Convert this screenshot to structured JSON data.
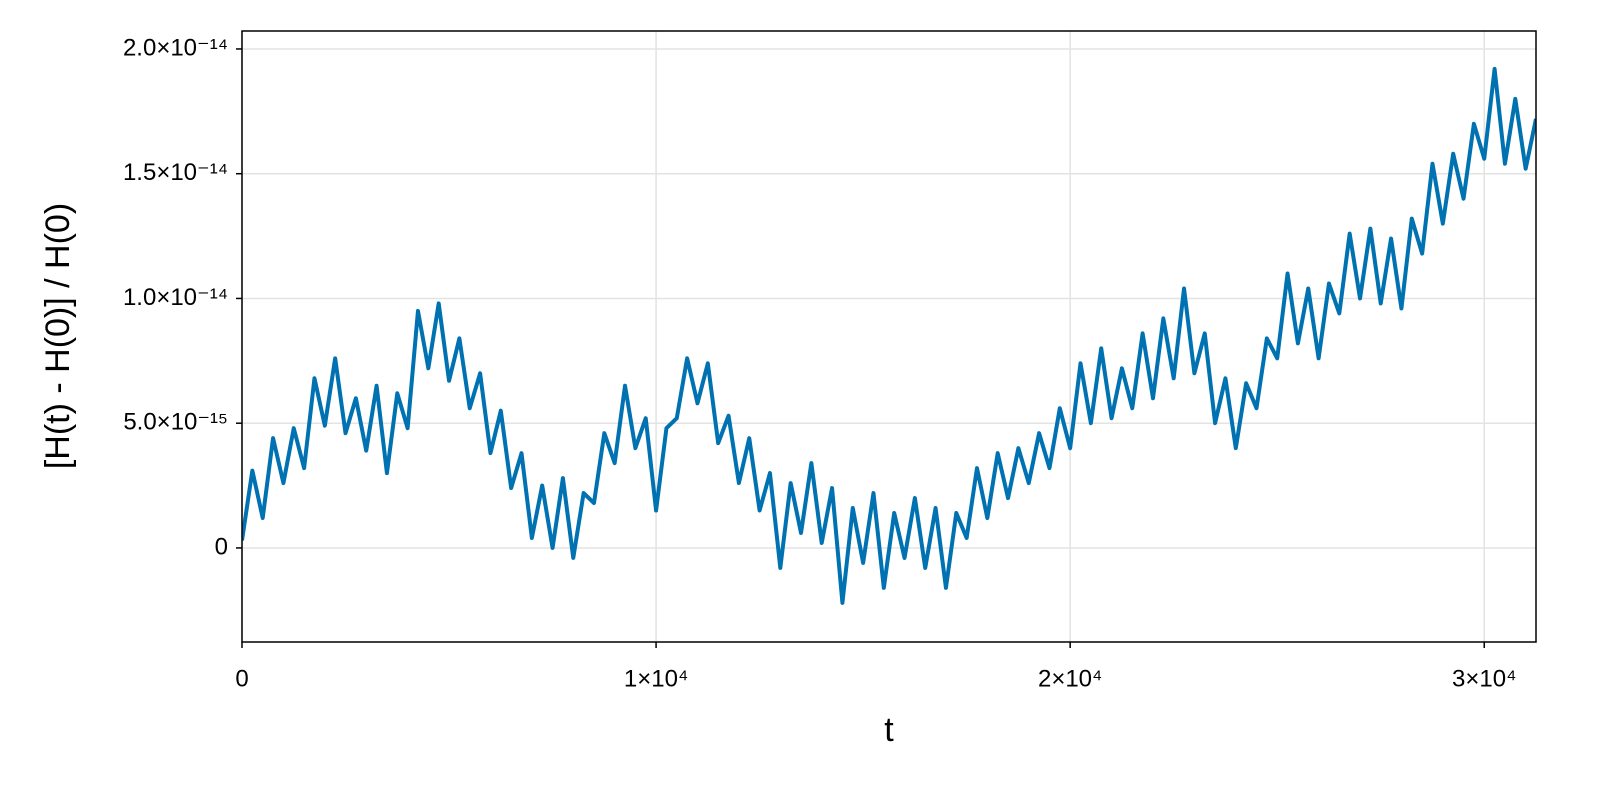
{
  "chart_data": {
    "type": "line",
    "x_label": "t",
    "y_label": "[H(t) - H(0)] / H(0)",
    "color": "#0072b2",
    "grid": true,
    "xlim": [
      0,
      31250
    ],
    "ylim": [
      -3.77e-15,
      2.072e-14
    ],
    "xticks": [
      0,
      {
        "value": 10000,
        "label": "1×10⁴"
      },
      {
        "value": 20000,
        "label": "2×10⁴"
      },
      {
        "value": 30000,
        "label": "3×10⁴"
      }
    ],
    "yticks": [
      0,
      {
        "value": 5e-15,
        "label": "5.0×10⁻¹⁵"
      },
      {
        "value": 1e-14,
        "label": "1.0×10⁻¹⁴"
      },
      {
        "value": 1.5e-14,
        "label": "1.5×10⁻¹⁴"
      },
      {
        "value": 2e-14,
        "label": "2.0×10⁻¹⁴"
      }
    ],
    "x": [
      0,
      250,
      500,
      750,
      1000,
      1250,
      1500,
      1750,
      2000,
      2250,
      2500,
      2750,
      3000,
      3250,
      3500,
      3750,
      4000,
      4250,
      4500,
      4750,
      5000,
      5250,
      5500,
      5750,
      6000,
      6250,
      6500,
      6750,
      7000,
      7250,
      7500,
      7750,
      8000,
      8250,
      8500,
      8750,
      9000,
      9250,
      9500,
      9750,
      10000,
      10250,
      10500,
      10750,
      11000,
      11250,
      11500,
      11750,
      12000,
      12250,
      12500,
      12750,
      13000,
      13250,
      13500,
      13750,
      14000,
      14250,
      14500,
      14750,
      15000,
      15250,
      15500,
      15750,
      16000,
      16250,
      16500,
      16750,
      17000,
      17250,
      17500,
      17750,
      18000,
      18250,
      18500,
      18750,
      19000,
      19250,
      19500,
      19750,
      20000,
      20250,
      20500,
      20750,
      21000,
      21250,
      21500,
      21750,
      22000,
      22250,
      22500,
      22750,
      23000,
      23250,
      23500,
      23750,
      24000,
      24250,
      24500,
      24750,
      25000,
      25250,
      25500,
      25750,
      26000,
      26250,
      26500,
      26750,
      27000,
      27250,
      27500,
      27750,
      28000,
      28250,
      28500,
      28750,
      29000,
      29250,
      29500,
      29750,
      30000,
      30250,
      30500,
      30750,
      31000,
      31250
    ],
    "values": [
      3e-16,
      3.1e-15,
      1.2e-15,
      4.4e-15,
      2.6e-15,
      4.8e-15,
      3.2e-15,
      6.8e-15,
      4.9e-15,
      7.6e-15,
      4.6e-15,
      6e-15,
      3.9e-15,
      6.5e-15,
      3e-15,
      6.2e-15,
      4.8e-15,
      9.5e-15,
      7.2e-15,
      9.8e-15,
      6.7e-15,
      8.4e-15,
      5.6e-15,
      7e-15,
      3.8e-15,
      5.5e-15,
      2.4e-15,
      3.8e-15,
      4e-16,
      2.5e-15,
      0,
      2.8e-15,
      -4e-16,
      2.2e-15,
      1.8e-15,
      4.6e-15,
      3.4e-15,
      6.5e-15,
      4e-15,
      5.2e-15,
      1.5e-15,
      4.8e-15,
      5.2e-15,
      7.6e-15,
      5.8e-15,
      7.4e-15,
      4.2e-15,
      5.3e-15,
      2.6e-15,
      4.4e-15,
      1.5e-15,
      3e-15,
      -8e-16,
      2.6e-15,
      6e-16,
      3.4e-15,
      2e-16,
      2.4e-15,
      -2.2e-15,
      1.6e-15,
      -6e-16,
      2.2e-15,
      -1.6e-15,
      1.4e-15,
      -4e-16,
      2e-15,
      -8e-16,
      1.6e-15,
      -1.6e-15,
      1.4e-15,
      4e-16,
      3.2e-15,
      1.2e-15,
      3.8e-15,
      2e-15,
      4e-15,
      2.6e-15,
      4.6e-15,
      3.2e-15,
      5.6e-15,
      4e-15,
      7.4e-15,
      5e-15,
      8e-15,
      5.2e-15,
      7.2e-15,
      5.6e-15,
      8.6e-15,
      6e-15,
      9.2e-15,
      6.8e-15,
      1.04e-14,
      7e-15,
      8.6e-15,
      5e-15,
      6.8e-15,
      4e-15,
      6.6e-15,
      5.6e-15,
      8.4e-15,
      7.6e-15,
      1.1e-14,
      8.2e-15,
      1.04e-14,
      7.6e-15,
      1.06e-14,
      9.4e-15,
      1.26e-14,
      1e-14,
      1.28e-14,
      9.8e-15,
      1.24e-14,
      9.6e-15,
      1.32e-14,
      1.18e-14,
      1.54e-14,
      1.3e-14,
      1.58e-14,
      1.4e-14,
      1.7e-14,
      1.56e-14,
      1.92e-14,
      1.54e-14,
      1.8e-14,
      1.52e-14,
      1.72e-14
    ]
  }
}
